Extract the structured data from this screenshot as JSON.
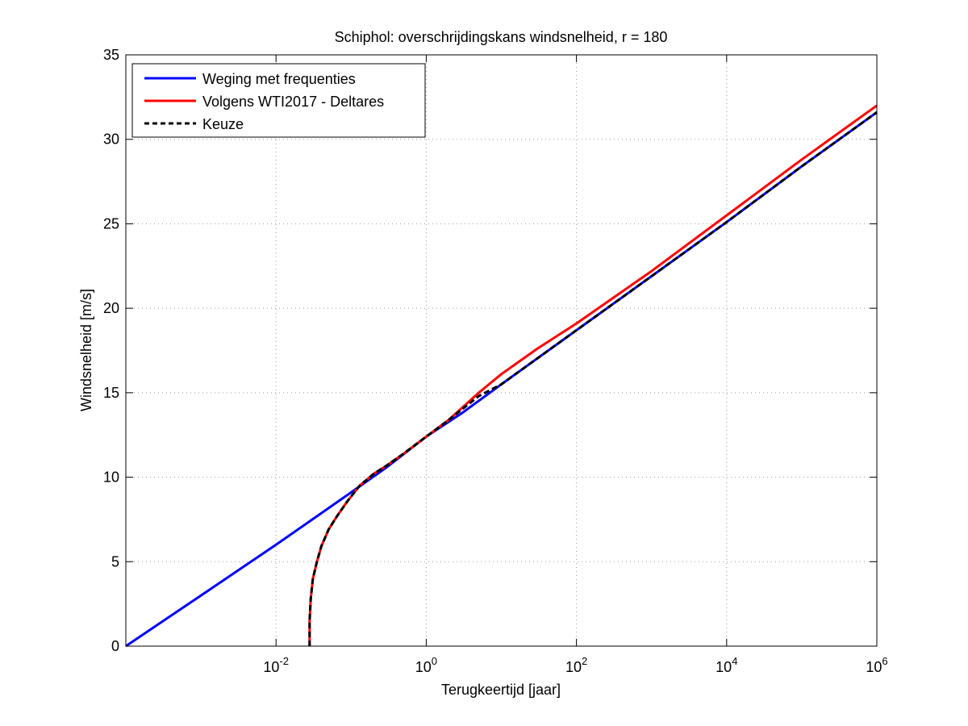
{
  "chart_data": {
    "type": "line",
    "title": "Schiphol: overschrijdingskans windsnelheid, r = 180",
    "xlabel": "Terugkeertijd [jaar]",
    "ylabel": "Windsnelheid [m/s]",
    "x_scale": "log",
    "xlim": [
      0.0001,
      1000000
    ],
    "ylim": [
      0,
      35
    ],
    "x_ticks": [
      {
        "value": 0.01,
        "base": "10",
        "exp": "-2"
      },
      {
        "value": 1,
        "base": "10",
        "exp": "0"
      },
      {
        "value": 100,
        "base": "10",
        "exp": "2"
      },
      {
        "value": 10000,
        "base": "10",
        "exp": "4"
      },
      {
        "value": 1000000,
        "base": "10",
        "exp": "6"
      }
    ],
    "y_ticks": [
      "0",
      "5",
      "10",
      "15",
      "20",
      "25",
      "30",
      "35"
    ],
    "grid": true,
    "legend_position": "top-left",
    "series": [
      {
        "name": "Weging met frequenties",
        "color": "#0000ff",
        "style": "solid",
        "x": [
          0.0001,
          0.001,
          0.01,
          0.1,
          0.3,
          1,
          3,
          10,
          100,
          1000,
          10000,
          100000,
          1000000
        ],
        "y": [
          0,
          3.0,
          6.0,
          9.1,
          10.6,
          12.4,
          13.8,
          15.5,
          18.7,
          21.9,
          25.1,
          28.4,
          31.6
        ]
      },
      {
        "name": "Volgens WTI2017 - Deltares",
        "color": "#ff0000",
        "style": "solid",
        "x": [
          0.028,
          0.028,
          0.029,
          0.031,
          0.035,
          0.04,
          0.05,
          0.065,
          0.09,
          0.13,
          0.2,
          0.3,
          0.5,
          1,
          2,
          5,
          10,
          30,
          100,
          1000,
          10000,
          100000,
          1000000
        ],
        "y": [
          0,
          1.5,
          2.8,
          4.0,
          5.0,
          5.9,
          6.9,
          7.7,
          8.6,
          9.5,
          10.2,
          10.7,
          11.4,
          12.4,
          13.4,
          15.0,
          16.1,
          17.6,
          19.1,
          22.2,
          25.5,
          28.8,
          32.0
        ]
      },
      {
        "name": "Keuze",
        "color": "#000000",
        "style": "dashed",
        "x": [
          0.028,
          0.028,
          0.029,
          0.031,
          0.035,
          0.04,
          0.05,
          0.065,
          0.09,
          0.13,
          0.2,
          0.3,
          0.5,
          1,
          2,
          5,
          10,
          100,
          1000,
          10000,
          100000,
          1000000
        ],
        "y": [
          0,
          1.5,
          2.8,
          4.0,
          5.0,
          5.9,
          6.9,
          7.7,
          8.6,
          9.5,
          10.2,
          10.7,
          11.4,
          12.4,
          13.4,
          14.8,
          15.5,
          18.7,
          21.9,
          25.1,
          28.4,
          31.6
        ]
      }
    ]
  }
}
